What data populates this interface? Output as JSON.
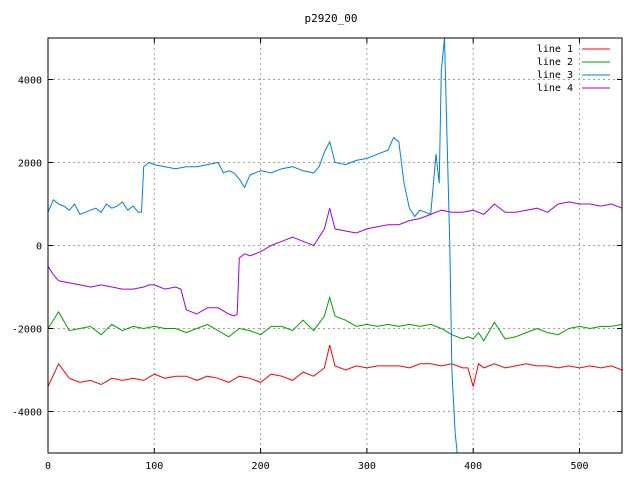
{
  "chart_data": {
    "type": "line",
    "title": "p2920_00",
    "xlabel": "",
    "ylabel": "",
    "xlim": [
      0,
      540
    ],
    "ylim": [
      -5000,
      5000
    ],
    "xticks": [
      0,
      100,
      200,
      300,
      400,
      500
    ],
    "yticks": [
      -4000,
      -2000,
      0,
      2000,
      4000
    ],
    "grid": true,
    "legend_position": "top-right",
    "colors": {
      "line 1": "#ff0000",
      "line 2": "#00a000",
      "line 3": "#0080e0",
      "line 4": "#a000e0"
    },
    "series": [
      {
        "name": "line 1",
        "x": [
          0,
          10,
          20,
          30,
          40,
          50,
          60,
          70,
          80,
          90,
          100,
          110,
          120,
          130,
          140,
          150,
          160,
          170,
          180,
          190,
          200,
          210,
          220,
          230,
          240,
          250,
          260,
          265,
          270,
          280,
          290,
          300,
          310,
          320,
          330,
          340,
          350,
          360,
          370,
          380,
          390,
          395,
          400,
          405,
          410,
          420,
          430,
          440,
          450,
          460,
          470,
          480,
          490,
          500,
          510,
          520,
          530,
          540
        ],
        "values": [
          -3400,
          -2850,
          -3200,
          -3300,
          -3250,
          -3350,
          -3200,
          -3250,
          -3200,
          -3250,
          -3100,
          -3200,
          -3150,
          -3150,
          -3250,
          -3150,
          -3200,
          -3300,
          -3150,
          -3200,
          -3300,
          -3100,
          -3150,
          -3250,
          -3050,
          -3150,
          -2950,
          -2400,
          -2900,
          -3000,
          -2900,
          -2950,
          -2900,
          -2900,
          -2900,
          -2950,
          -2850,
          -2850,
          -2900,
          -2850,
          -2950,
          -2950,
          -3400,
          -2850,
          -2950,
          -2850,
          -2950,
          -2900,
          -2850,
          -2900,
          -2900,
          -2950,
          -2900,
          -2950,
          -2900,
          -2950,
          -2900,
          -3000
        ]
      },
      {
        "name": "line 2",
        "x": [
          0,
          10,
          20,
          30,
          40,
          50,
          60,
          70,
          80,
          90,
          100,
          110,
          120,
          130,
          140,
          150,
          160,
          170,
          180,
          190,
          200,
          210,
          220,
          230,
          240,
          250,
          260,
          265,
          270,
          280,
          290,
          300,
          310,
          320,
          330,
          340,
          350,
          360,
          370,
          380,
          390,
          395,
          400,
          405,
          410,
          420,
          430,
          440,
          450,
          460,
          470,
          480,
          490,
          500,
          510,
          520,
          530,
          540
        ],
        "values": [
          -2000,
          -1600,
          -2050,
          -2000,
          -1950,
          -2150,
          -1900,
          -2050,
          -1950,
          -2000,
          -1950,
          -2000,
          -2000,
          -2100,
          -2000,
          -1900,
          -2050,
          -2200,
          -2000,
          -2050,
          -2150,
          -1950,
          -1950,
          -2050,
          -1800,
          -2050,
          -1700,
          -1250,
          -1700,
          -1800,
          -1950,
          -1900,
          -1950,
          -1900,
          -1950,
          -1900,
          -1950,
          -1900,
          -2000,
          -2150,
          -2250,
          -2200,
          -2250,
          -2100,
          -2300,
          -1850,
          -2250,
          -2200,
          -2100,
          -2000,
          -2100,
          -2150,
          -2000,
          -1950,
          -2000,
          -1950,
          -1950,
          -1900
        ]
      },
      {
        "name": "line 3",
        "x": [
          0,
          5,
          10,
          15,
          20,
          25,
          30,
          35,
          40,
          45,
          50,
          55,
          60,
          65,
          70,
          75,
          80,
          85,
          88,
          90,
          95,
          100,
          110,
          120,
          130,
          140,
          150,
          160,
          165,
          170,
          175,
          180,
          185,
          190,
          200,
          210,
          220,
          230,
          240,
          250,
          255,
          260,
          265,
          270,
          280,
          290,
          300,
          310,
          320,
          325,
          330,
          335,
          340,
          345,
          350,
          355,
          360,
          365,
          368,
          370,
          373,
          375,
          378,
          380,
          383,
          385
        ],
        "values": [
          800,
          1100,
          1000,
          950,
          850,
          1000,
          750,
          800,
          850,
          900,
          800,
          1000,
          900,
          950,
          1050,
          850,
          950,
          800,
          800,
          1900,
          2000,
          1950,
          1900,
          1850,
          1900,
          1900,
          1950,
          2000,
          1750,
          1800,
          1750,
          1600,
          1400,
          1700,
          1800,
          1750,
          1850,
          1900,
          1800,
          1750,
          1900,
          2250,
          2500,
          2000,
          1950,
          2050,
          2100,
          2200,
          2300,
          2600,
          2500,
          1500,
          900,
          700,
          850,
          800,
          750,
          2200,
          1500,
          4200,
          5000,
          3000,
          0,
          -3000,
          -4500,
          -5000
        ]
      },
      {
        "name": "line 4",
        "x": [
          0,
          5,
          10,
          20,
          30,
          40,
          50,
          60,
          70,
          80,
          90,
          95,
          100,
          110,
          120,
          125,
          130,
          140,
          150,
          160,
          170,
          175,
          178,
          180,
          185,
          190,
          200,
          210,
          220,
          230,
          240,
          250,
          260,
          265,
          270,
          280,
          290,
          300,
          310,
          320,
          330,
          340,
          350,
          360,
          370,
          380,
          390,
          400,
          410,
          420,
          430,
          440,
          450,
          460,
          470,
          480,
          490,
          500,
          510,
          520,
          530,
          540
        ],
        "values": [
          -500,
          -700,
          -850,
          -900,
          -950,
          -1000,
          -950,
          -1000,
          -1050,
          -1050,
          -1000,
          -950,
          -950,
          -1050,
          -1000,
          -1050,
          -1550,
          -1650,
          -1500,
          -1500,
          -1650,
          -1700,
          -1650,
          -300,
          -200,
          -250,
          -150,
          0,
          100,
          200,
          100,
          0,
          400,
          900,
          400,
          350,
          300,
          400,
          450,
          500,
          500,
          600,
          650,
          750,
          850,
          800,
          800,
          850,
          750,
          1000,
          800,
          800,
          850,
          900,
          800,
          1000,
          1050,
          1000,
          1000,
          950,
          1000,
          900
        ]
      }
    ]
  }
}
